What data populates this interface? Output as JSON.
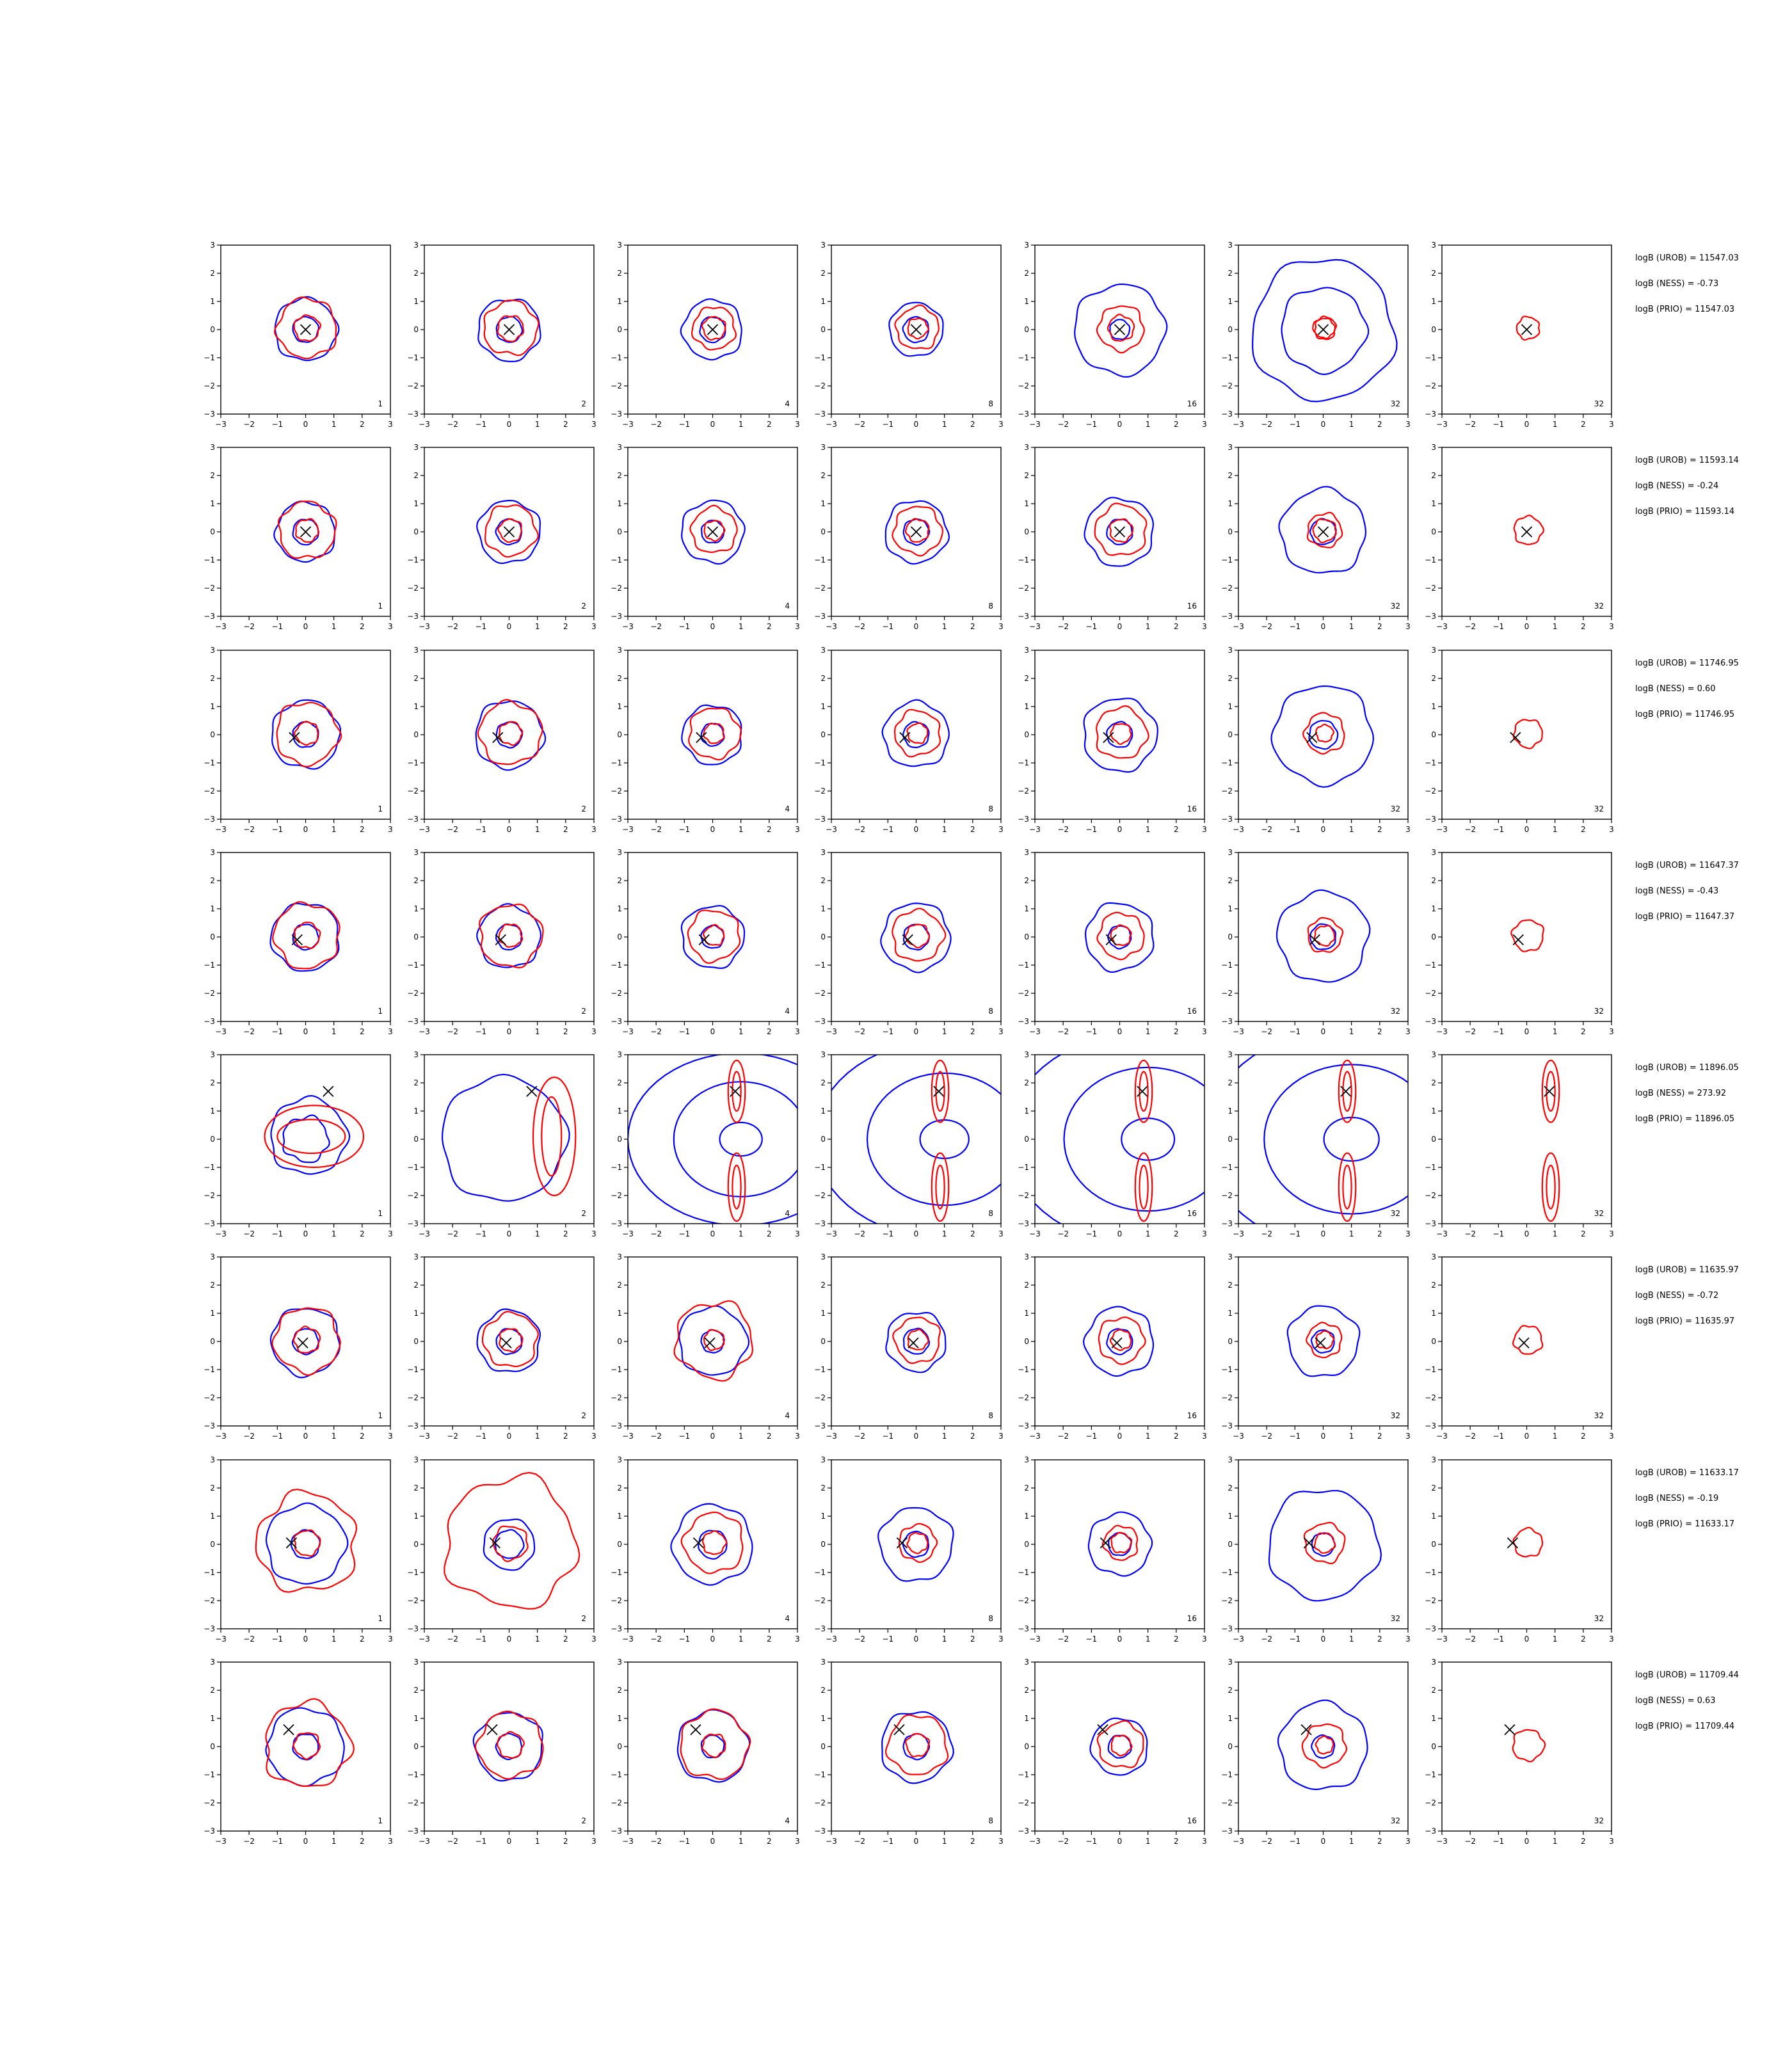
{
  "colors": {
    "blue": "#0000ff",
    "red": "#ff0000",
    "marker": "#000000",
    "axis": "#000000"
  },
  "chart_data": {
    "type": "contour-grid",
    "rows": 8,
    "cols": 7,
    "xlim": [
      -3,
      3
    ],
    "ylim": [
      -3,
      3
    ],
    "xticks": [
      "−3",
      "−2",
      "−1",
      "0",
      "1",
      "2",
      "3"
    ],
    "yticks": [
      "3",
      "2",
      "1",
      "0",
      "−1",
      "−2",
      "−3"
    ],
    "panel_labels": [
      "1",
      "2",
      "4",
      "8",
      "16",
      "32",
      "32"
    ],
    "rows_data": [
      {
        "marker": [
          0,
          0
        ],
        "stats": [
          "logB (UROB) = 11547.03",
          "logB (NESS) = -0.73",
          "logB (PRIO) = 11547.03"
        ],
        "blue_radii": [
          [
            0.45,
            1.1
          ],
          [
            0.45,
            1.1
          ],
          [
            0.45,
            1.05
          ],
          [
            0.45,
            0.95
          ],
          [
            0.35,
            1.6
          ],
          [
            1.5,
            2.5
          ],
          []
        ],
        "red_radii": [
          [
            0.45,
            1.05
          ],
          [
            0.45,
            0.95
          ],
          [
            0.4,
            0.75
          ],
          [
            0.35,
            0.75
          ],
          [
            0.45,
            0.8
          ],
          [
            0.35,
            0.4
          ],
          [
            0.4
          ]
        ]
      },
      {
        "marker": [
          0,
          0
        ],
        "stats": [
          "logB (UROB) = 11593.14",
          "logB (NESS) = -0.24",
          "logB (PRIO) = 11593.14"
        ],
        "blue_radii": [
          [
            0.45,
            1.05
          ],
          [
            0.45,
            1.1
          ],
          [
            0.4,
            1.1
          ],
          [
            0.45,
            1.1
          ],
          [
            0.45,
            1.2
          ],
          [
            0.45,
            1.5
          ],
          []
        ],
        "red_radii": [
          [
            0.4,
            1.0
          ],
          [
            0.4,
            0.9
          ],
          [
            0.35,
            0.8
          ],
          [
            0.4,
            0.85
          ],
          [
            0.4,
            0.9
          ],
          [
            0.4,
            0.6
          ],
          [
            0.5
          ]
        ]
      },
      {
        "marker": [
          -0.4,
          -0.1
        ],
        "stats": [
          "logB (UROB) = 11746.95",
          "logB (NESS) = 0.60",
          "logB (PRIO) = 11746.95"
        ],
        "blue_radii": [
          [
            0.45,
            1.2
          ],
          [
            0.45,
            1.2
          ],
          [
            0.4,
            1.05
          ],
          [
            0.45,
            1.15
          ],
          [
            0.45,
            1.3
          ],
          [
            0.5,
            1.75
          ],
          []
        ],
        "red_radii": [
          [
            0.4,
            1.1
          ],
          [
            0.4,
            1.1
          ],
          [
            0.35,
            0.9
          ],
          [
            0.35,
            0.8
          ],
          [
            0.35,
            0.9
          ],
          [
            0.3,
            0.7
          ],
          [
            0.5
          ]
        ]
      },
      {
        "marker": [
          -0.3,
          -0.1
        ],
        "stats": [
          "logB (UROB) = 11647.37",
          "logB (NESS) = -0.43",
          "logB (PRIO) = 11647.37"
        ],
        "blue_radii": [
          [
            0.45,
            1.2
          ],
          [
            0.45,
            1.1
          ],
          [
            0.4,
            1.1
          ],
          [
            0.45,
            1.2
          ],
          [
            0.4,
            1.2
          ],
          [
            0.45,
            1.6
          ],
          []
        ],
        "red_radii": [
          [
            0.45,
            1.15
          ],
          [
            0.4,
            1.1
          ],
          [
            0.35,
            0.9
          ],
          [
            0.4,
            0.9
          ],
          [
            0.35,
            0.8
          ],
          [
            0.35,
            0.6
          ],
          [
            0.55
          ]
        ]
      },
      {
        "marker": [
          0.8,
          1.7
        ],
        "stats": [
          "logB (UROB) = 11896.05",
          "logB (NESS) = 273.92",
          "logB (PRIO) = 11896.05"
        ],
        "blue_radii": [],
        "red_radii": []
      },
      {
        "marker": [
          -0.1,
          -0.05
        ],
        "stats": [
          "logB (UROB) = 11635.97",
          "logB (NESS) = -0.72",
          "logB (PRIO) = 11635.97"
        ],
        "blue_radii": [
          [
            0.45,
            1.2
          ],
          [
            0.45,
            1.1
          ],
          [
            0.4,
            1.2
          ],
          [
            0.45,
            1.05
          ],
          [
            0.45,
            1.2
          ],
          [
            0.4,
            1.25
          ],
          []
        ],
        "red_radii": [
          [
            0.45,
            1.15
          ],
          [
            0.4,
            0.95
          ],
          [
            0.35,
            1.35
          ],
          [
            0.35,
            0.8
          ],
          [
            0.35,
            0.8
          ],
          [
            0.3,
            0.6
          ],
          [
            0.5
          ]
        ]
      },
      {
        "marker": [
          -0.5,
          0.05
        ],
        "stats": [
          "logB (UROB) = 11633.17",
          "logB (NESS) = -0.19",
          "logB (PRIO) = 11633.17"
        ],
        "blue_radii": [
          [
            0.5,
            1.4
          ],
          [
            0.5,
            0.9
          ],
          [
            0.5,
            1.4
          ],
          [
            0.45,
            1.3
          ],
          [
            0.4,
            1.1
          ],
          [
            0.4,
            1.95
          ],
          []
        ],
        "red_radii": [
          [
            0.45,
            1.75
          ],
          [
            0.6,
            2.3
          ],
          [
            0.4,
            1.05
          ],
          [
            0.35,
            0.65
          ],
          [
            0.35,
            0.6
          ],
          [
            0.35,
            0.7
          ],
          [
            0.5
          ]
        ]
      },
      {
        "marker": [
          -0.6,
          0.6
        ],
        "stats": [
          "logB (UROB) = 11709.44",
          "logB (NESS) = 0.63",
          "logB (PRIO) = 11709.44"
        ],
        "blue_radii": [
          [
            0.45,
            1.35
          ],
          [
            0.45,
            1.2
          ],
          [
            0.4,
            1.25
          ],
          [
            0.45,
            1.25
          ],
          [
            0.4,
            1.0
          ],
          [
            0.4,
            1.55
          ],
          []
        ],
        "red_radii": [
          [
            0.45,
            1.5
          ],
          [
            0.45,
            1.15
          ],
          [
            0.4,
            1.2
          ],
          [
            0.4,
            1.05
          ],
          [
            0.35,
            0.8
          ],
          [
            0.3,
            0.75
          ],
          [
            0.55
          ]
        ]
      }
    ]
  }
}
